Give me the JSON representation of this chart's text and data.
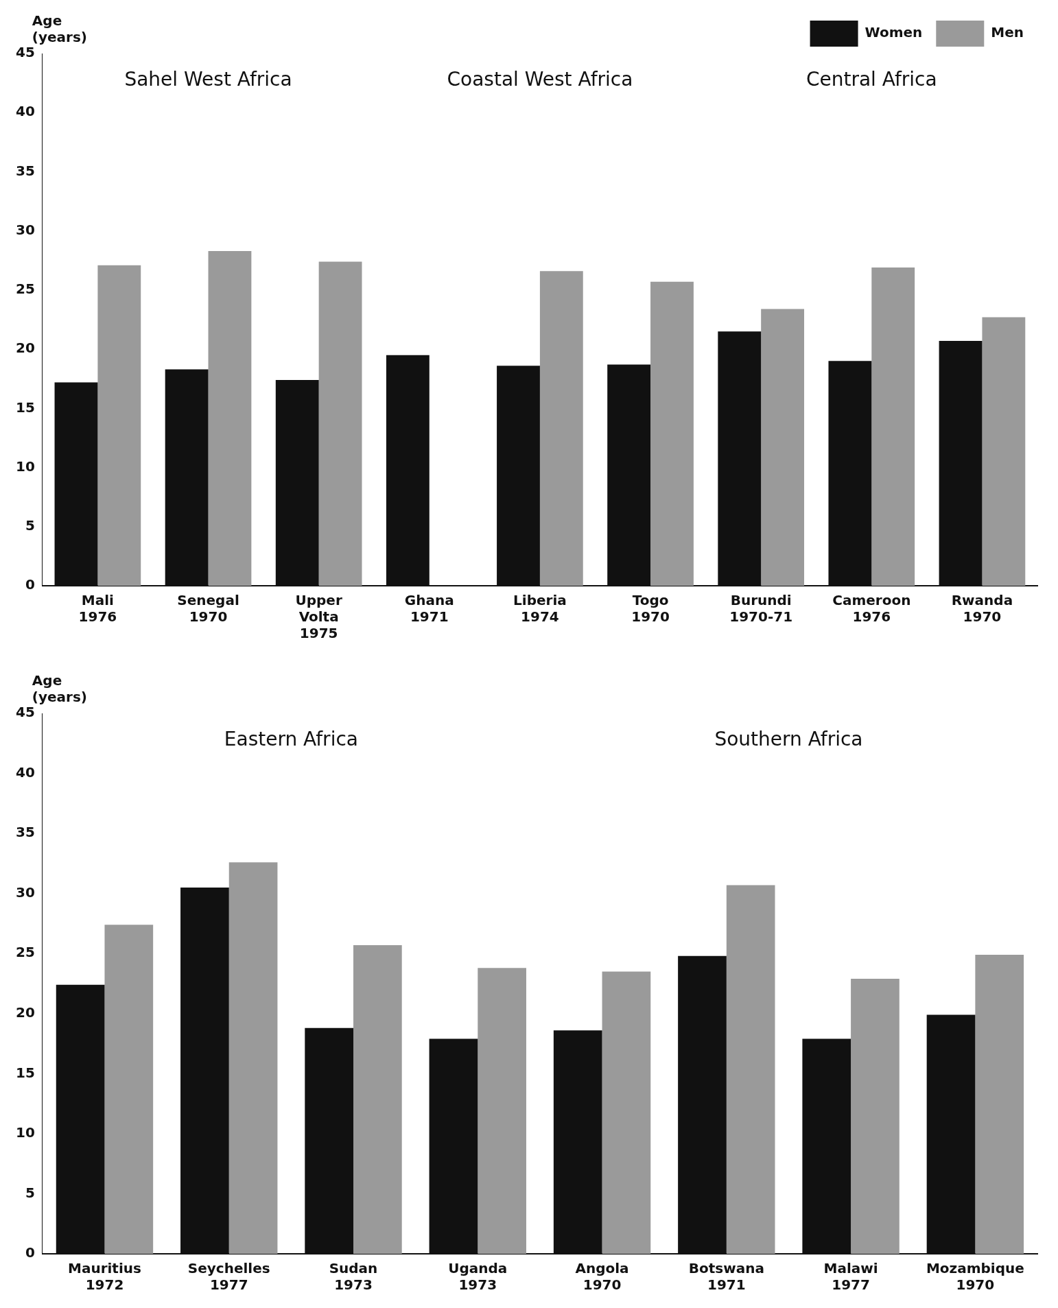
{
  "chart_data": [
    {
      "type": "bar",
      "ylabel": "Age (years)",
      "categories": [
        "Mali 1976",
        "Senegal 1970",
        "Upper Volta 1975",
        "Ghana 1971",
        "Liberia 1974",
        "Togo 1970",
        "Burundi 1970-71",
        "Cameroon 1976",
        "Rwanda 1970"
      ],
      "series": [
        {
          "name": "Women",
          "color": "#111111",
          "values": [
            17.2,
            18.3,
            17.4,
            19.5,
            18.6,
            18.7,
            21.5,
            19.0,
            20.7
          ]
        },
        {
          "name": "Men",
          "color": "#9a9a9a",
          "values": [
            27.1,
            28.3,
            27.4,
            null,
            26.6,
            25.7,
            23.4,
            26.9,
            22.7
          ]
        }
      ],
      "ylim": [
        0,
        45
      ],
      "yticks": [
        0,
        5,
        10,
        15,
        20,
        25,
        30,
        35,
        40,
        45
      ],
      "legend": "top right",
      "annotations": [
        "Sahel West Africa",
        "Coastal West Africa",
        "Central Africa"
      ]
    },
    {
      "type": "bar",
      "ylabel": "Age (years)",
      "categories": [
        "Mauritius 1972",
        "Seychelles 1977",
        "Sudan 1973",
        "Uganda 1973",
        "Angola 1970",
        "Botswana 1971",
        "Malawi 1977",
        "Mozambique 1970"
      ],
      "series": [
        {
          "color": "#111111",
          "values": [
            22.4,
            30.5,
            18.8,
            17.9,
            18.6,
            24.8,
            17.9,
            19.9
          ]
        },
        {
          "color": "#9a9a9a",
          "values": [
            27.4,
            32.6,
            25.7,
            23.8,
            23.5,
            30.7,
            22.9,
            24.9
          ]
        }
      ],
      "ylim": [
        0,
        45
      ],
      "yticks": [
        0,
        5,
        10,
        15,
        20,
        25,
        30,
        35,
        40,
        45
      ],
      "annotations": [
        "Eastern Africa",
        "Southern Africa"
      ]
    }
  ]
}
